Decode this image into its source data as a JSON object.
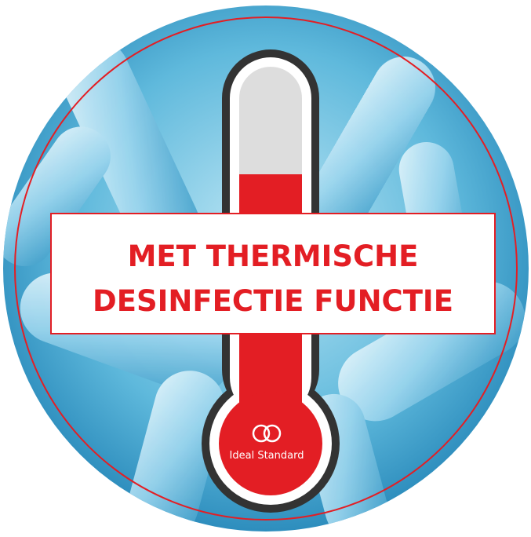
{
  "badge": {
    "heading_lines": [
      "MET THERMISCHE",
      "DESINFECTIE FUNCTIE"
    ],
    "brand": "Ideal Standard"
  }
}
